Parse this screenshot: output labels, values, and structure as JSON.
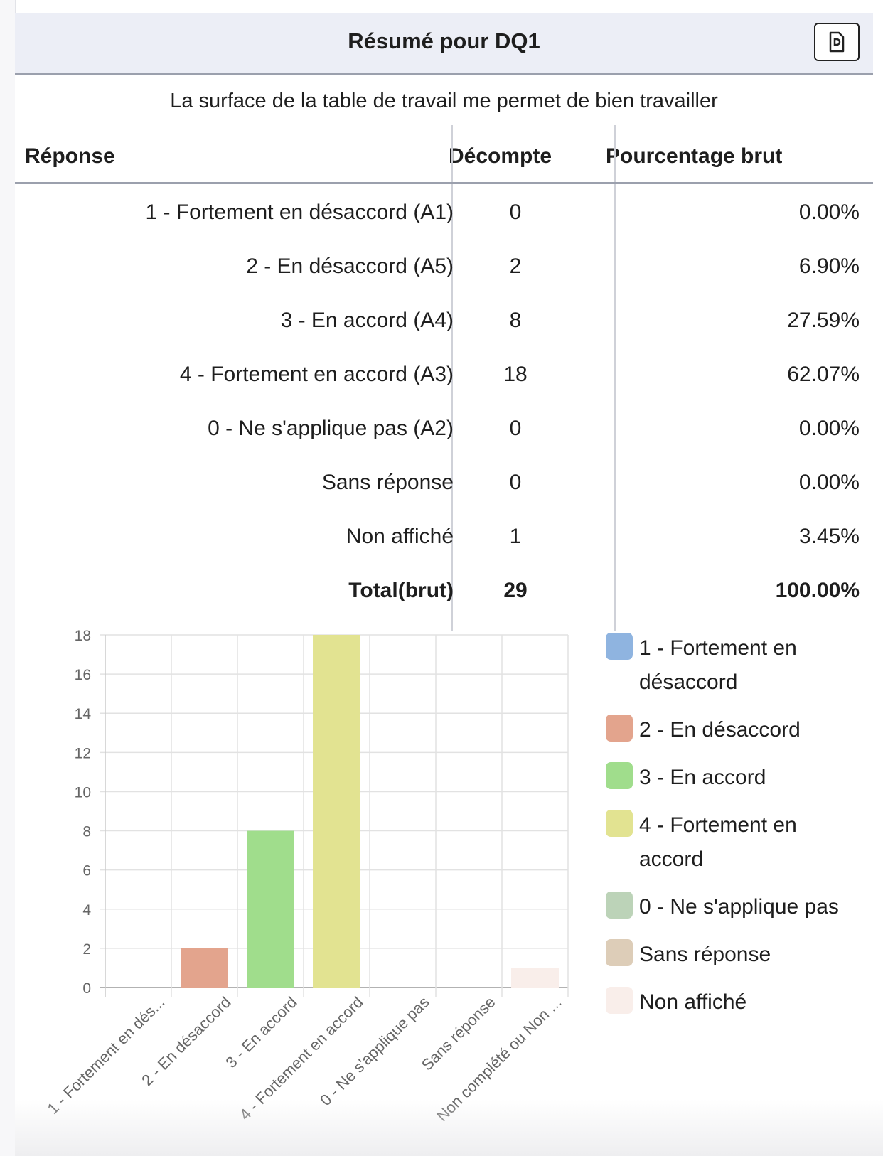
{
  "header": {
    "title": "Résumé pour DQ1",
    "export_icon": "file-export-icon"
  },
  "question": "La surface de la table de travail me permet de bien travailler",
  "table": {
    "columns": [
      "Réponse",
      "Décompte",
      "Pourcentage brut"
    ],
    "rows": [
      {
        "label": "1 - Fortement en désaccord (A1)",
        "count": "0",
        "pct": "0.00%"
      },
      {
        "label": "2 - En désaccord (A5)",
        "count": "2",
        "pct": "6.90%"
      },
      {
        "label": "3 - En accord (A4)",
        "count": "8",
        "pct": "27.59%"
      },
      {
        "label": "4 - Fortement en accord (A3)",
        "count": "18",
        "pct": "62.07%"
      },
      {
        "label": "0 - Ne s'applique pas (A2)",
        "count": "0",
        "pct": "0.00%"
      },
      {
        "label": "Sans réponse",
        "count": "0",
        "pct": "0.00%"
      },
      {
        "label": "Non affiché",
        "count": "1",
        "pct": "3.45%"
      }
    ],
    "total": {
      "label": "Total(brut)",
      "count": "29",
      "pct": "100.00%"
    }
  },
  "chart_data": {
    "type": "bar",
    "categories": [
      "1 - Fortement en dés...",
      "2 - En désaccord",
      "3 - En accord",
      "4 - Fortement en accord",
      "0 - Ne s'applique pas",
      "Sans réponse",
      "Non complété ou Non ..."
    ],
    "values": [
      0,
      2,
      8,
      18,
      0,
      0,
      1
    ],
    "colors": [
      "#8fb4e0",
      "#e3a48d",
      "#a0dd8c",
      "#e2e391",
      "#bcd3b8",
      "#ddcdb8",
      "#f9eeea"
    ],
    "ylim": [
      0,
      18
    ],
    "yticks": [
      "0",
      "2",
      "4",
      "6",
      "8",
      "10",
      "12",
      "14",
      "16",
      "18"
    ],
    "grid": true,
    "legend_position": "right",
    "legend": [
      "1 - Fortement en désaccord",
      "2 - En désaccord",
      "3 - En accord",
      "4 - Fortement en accord",
      "0 - Ne s'applique pas",
      "Sans réponse",
      "Non affiché"
    ]
  }
}
